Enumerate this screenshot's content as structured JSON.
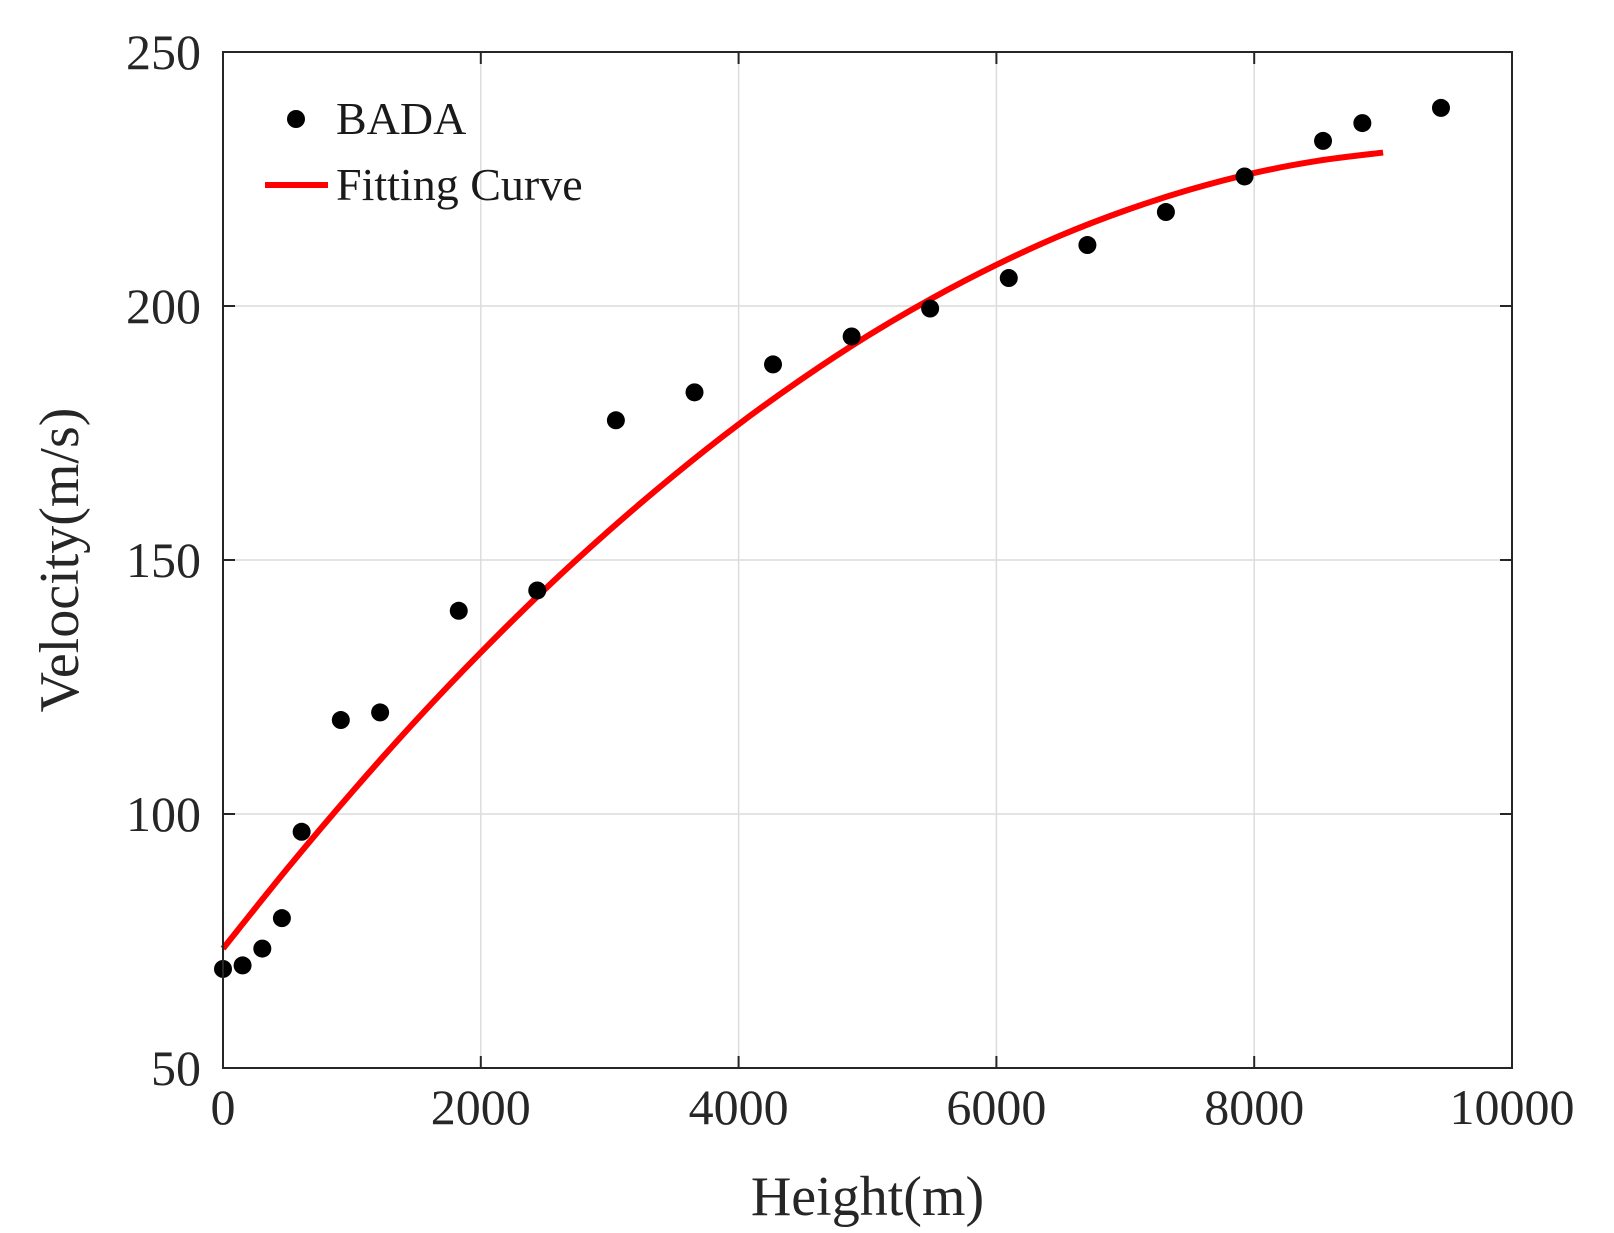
{
  "chart_data": {
    "type": "scatter",
    "title": "",
    "xlabel": "Height(m)",
    "ylabel": "Velocity(m/s)",
    "xlim": [
      0,
      10000
    ],
    "ylim": [
      50,
      250
    ],
    "xticks": [
      0,
      2000,
      4000,
      6000,
      8000,
      10000
    ],
    "yticks": [
      50,
      100,
      150,
      200,
      250
    ],
    "xtick_labels": [
      "0",
      "2000",
      "4000",
      "6000",
      "8000",
      "10000"
    ],
    "ytick_labels": [
      "50",
      "100",
      "150",
      "200",
      "250"
    ],
    "grid": true,
    "legend_position": "top-left",
    "series": [
      {
        "name": "BADA",
        "kind": "scatter",
        "color": "#000000",
        "x": [
          0,
          152,
          305,
          457,
          610,
          914,
          1219,
          1829,
          2438,
          3048,
          3658,
          4267,
          4877,
          5486,
          6096,
          6706,
          7315,
          7925,
          8534,
          8839,
          9449
        ],
        "y": [
          69.5,
          70.2,
          73.5,
          79.5,
          96.5,
          118.5,
          120,
          140,
          144,
          177.5,
          183,
          188.5,
          194,
          199.5,
          205.5,
          212,
          218.5,
          225.5,
          232.5,
          236,
          239
        ]
      },
      {
        "name": "Fitting Curve",
        "kind": "line",
        "color": "#ff0000",
        "x": [
          0,
          500,
          1000,
          1500,
          2000,
          2500,
          3000,
          3500,
          4000,
          4500,
          5000,
          5500,
          6000,
          6500,
          7000,
          7500,
          8000,
          8500,
          9000
        ],
        "y": [
          73.5,
          89.3,
          104.3,
          118.5,
          131.8,
          144.3,
          155.9,
          166.7,
          176.7,
          185.8,
          194.1,
          201.5,
          208.1,
          213.9,
          218.8,
          222.9,
          226.2,
          228.6,
          230.2
        ]
      }
    ]
  }
}
